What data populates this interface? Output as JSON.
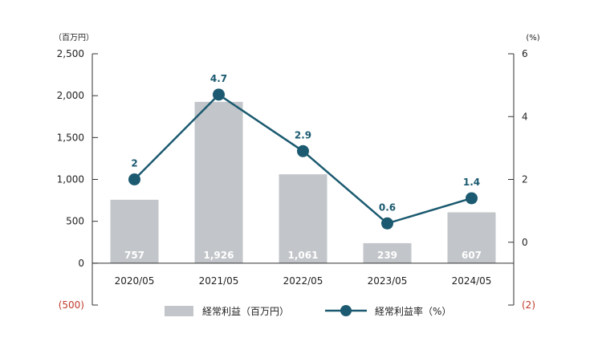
{
  "chart_data": {
    "type": "bar",
    "categories": [
      "2020/05",
      "2021/05",
      "2022/05",
      "2023/05",
      "2024/05"
    ],
    "series": [
      {
        "name": "経常利益（百万円）",
        "type": "bar",
        "axis": "left",
        "color": "#c2c5c9",
        "values": [
          757,
          1926,
          1061,
          239,
          607
        ],
        "labels": [
          "757",
          "1,926",
          "1,061",
          "239",
          "607"
        ]
      },
      {
        "name": "経常利益率（%）",
        "type": "line",
        "axis": "right",
        "color": "#1b5a70",
        "values": [
          2,
          4.7,
          2.9,
          0.6,
          1.4
        ],
        "labels": [
          "2",
          "4.7",
          "2.9",
          "0.6",
          "1.4"
        ]
      }
    ],
    "y_left": {
      "unit": "（百万円）",
      "min": -500,
      "max": 2500,
      "ticks": [
        -500,
        0,
        500,
        1000,
        1500,
        2000,
        2500
      ],
      "tick_labels": [
        "(500)",
        "0",
        "500",
        "1,000",
        "1,500",
        "2,000",
        "2,500"
      ]
    },
    "y_right": {
      "unit": "(%)",
      "min": -2,
      "max": 6,
      "ticks": [
        -2,
        0,
        2,
        4,
        6
      ],
      "tick_labels": [
        "(2)",
        "0",
        "2",
        "4",
        "6"
      ]
    },
    "negative_tick_color": "#c0392b",
    "legend_position": "bottom",
    "grid": false
  }
}
